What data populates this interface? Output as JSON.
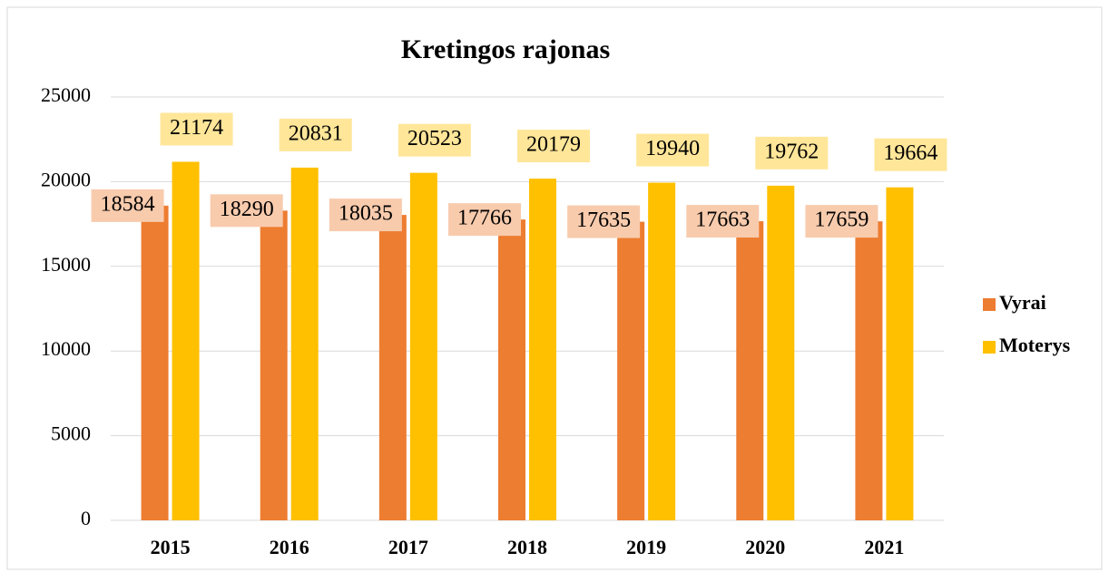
{
  "chart_data": {
    "type": "bar",
    "title": "Kretingos rajonas",
    "categories": [
      "2015",
      "2016",
      "2017",
      "2018",
      "2019",
      "2020",
      "2021"
    ],
    "series": [
      {
        "name": "Vyrai",
        "color": "#ed7d31",
        "label_color": "#f8cbad",
        "values": [
          18584,
          18290,
          18035,
          17766,
          17635,
          17663,
          17659
        ]
      },
      {
        "name": "Moterys",
        "color": "#ffc000",
        "label_color": "#ffe699",
        "values": [
          21174,
          20831,
          20523,
          20179,
          19940,
          19762,
          19664
        ]
      }
    ],
    "ylim": [
      0,
      25000
    ],
    "yticks": [
      0,
      5000,
      10000,
      15000,
      20000,
      25000
    ],
    "grid": true,
    "legend": "right"
  }
}
